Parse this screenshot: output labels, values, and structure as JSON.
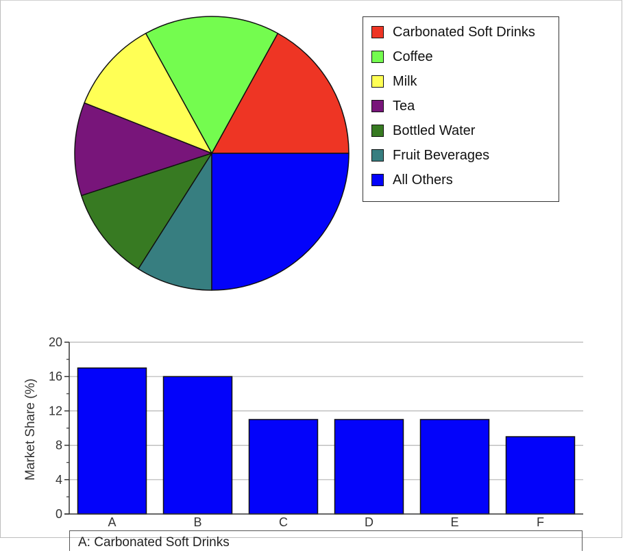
{
  "chart_data": [
    {
      "type": "pie",
      "labels": [
        "Carbonated Soft Drinks",
        "Coffee",
        "Milk",
        "Tea",
        "Bottled Water",
        "Fruit Beverages",
        "All Others"
      ],
      "values": [
        17,
        16,
        11,
        11,
        11,
        9,
        25
      ],
      "colors": [
        "#ee3524",
        "#74fc4f",
        "#ffff55",
        "#78157a",
        "#377a22",
        "#377e80",
        "#0303fa"
      ],
      "legend_position": "top-right"
    },
    {
      "type": "bar",
      "categories": [
        "A",
        "B",
        "C",
        "D",
        "E",
        "F"
      ],
      "values": [
        17,
        16,
        11,
        11,
        11,
        9
      ],
      "ylabel": "Market Share (%)",
      "ylim": [
        0,
        20
      ],
      "yticks": [
        "0",
        "4",
        "8",
        "12",
        "16",
        "20"
      ],
      "grid": true,
      "bar_color": "#0303fa"
    }
  ],
  "table": {
    "first_row": "A: Carbonated Soft Drinks"
  }
}
